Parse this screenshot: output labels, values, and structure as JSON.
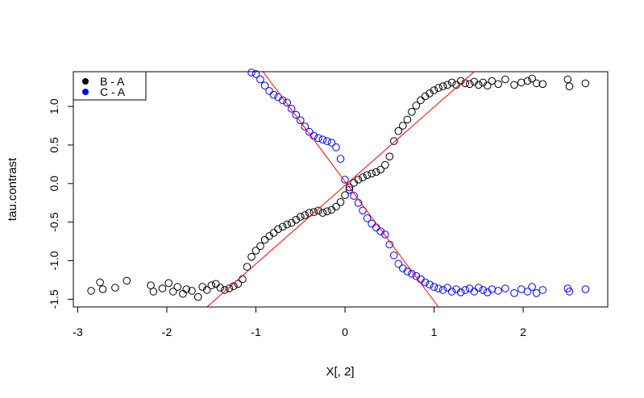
{
  "chart_data": {
    "type": "scatter",
    "title": "",
    "xlabel": "X[, 2]",
    "ylabel": "tau.contrast",
    "xlim": [
      -3.05,
      2.95
    ],
    "ylim": [
      -1.6,
      1.45
    ],
    "x_ticks": [
      "-3",
      "-2",
      "-1",
      "0",
      "1",
      "2"
    ],
    "x_tick_values": [
      -3,
      -2,
      -1,
      0,
      1,
      2
    ],
    "y_ticks": [
      "-1.5",
      "-1.0",
      "-0.5",
      "0.0",
      "0.5",
      "1.0"
    ],
    "y_tick_values": [
      -1.5,
      -1.0,
      -0.5,
      0.0,
      0.5,
      1.0
    ],
    "grid": false,
    "legend_position": "top-left",
    "series": [
      {
        "name": "B - A",
        "color": "#000000",
        "marker": "open-circle",
        "points": [
          [
            -2.85,
            -1.39
          ],
          [
            -2.75,
            -1.28
          ],
          [
            -2.72,
            -1.37
          ],
          [
            -2.58,
            -1.35
          ],
          [
            -2.45,
            -1.26
          ],
          [
            -2.18,
            -1.32
          ],
          [
            -2.15,
            -1.4
          ],
          [
            -2.05,
            -1.36
          ],
          [
            -1.98,
            -1.29
          ],
          [
            -1.93,
            -1.4
          ],
          [
            -1.88,
            -1.34
          ],
          [
            -1.82,
            -1.43
          ],
          [
            -1.78,
            -1.37
          ],
          [
            -1.72,
            -1.39
          ],
          [
            -1.65,
            -1.47
          ],
          [
            -1.6,
            -1.34
          ],
          [
            -1.55,
            -1.38
          ],
          [
            -1.5,
            -1.32
          ],
          [
            -1.45,
            -1.3
          ],
          [
            -1.4,
            -1.35
          ],
          [
            -1.35,
            -1.38
          ],
          [
            -1.3,
            -1.36
          ],
          [
            -1.25,
            -1.33
          ],
          [
            -1.2,
            -1.3
          ],
          [
            -1.15,
            -1.24
          ],
          [
            -1.1,
            -1.08
          ],
          [
            -1.05,
            -0.95
          ],
          [
            -1.0,
            -0.87
          ],
          [
            -0.95,
            -0.81
          ],
          [
            -0.9,
            -0.73
          ],
          [
            -0.85,
            -0.68
          ],
          [
            -0.8,
            -0.64
          ],
          [
            -0.75,
            -0.59
          ],
          [
            -0.7,
            -0.56
          ],
          [
            -0.65,
            -0.53
          ],
          [
            -0.6,
            -0.51
          ],
          [
            -0.55,
            -0.47
          ],
          [
            -0.5,
            -0.43
          ],
          [
            -0.45,
            -0.41
          ],
          [
            -0.4,
            -0.38
          ],
          [
            -0.35,
            -0.37
          ],
          [
            -0.3,
            -0.35
          ],
          [
            -0.25,
            -0.38
          ],
          [
            -0.2,
            -0.36
          ],
          [
            -0.15,
            -0.34
          ],
          [
            -0.1,
            -0.3
          ],
          [
            -0.05,
            -0.24
          ],
          [
            0.0,
            -0.15
          ],
          [
            0.05,
            -0.05
          ],
          [
            0.1,
            0.01
          ],
          [
            0.15,
            0.05
          ],
          [
            0.2,
            0.08
          ],
          [
            0.25,
            0.11
          ],
          [
            0.3,
            0.13
          ],
          [
            0.35,
            0.15
          ],
          [
            0.4,
            0.18
          ],
          [
            0.45,
            0.24
          ],
          [
            0.5,
            0.35
          ],
          [
            0.55,
            0.55
          ],
          [
            0.6,
            0.68
          ],
          [
            0.65,
            0.75
          ],
          [
            0.7,
            0.83
          ],
          [
            0.75,
            0.93
          ],
          [
            0.8,
            1.01
          ],
          [
            0.85,
            1.08
          ],
          [
            0.9,
            1.13
          ],
          [
            0.95,
            1.17
          ],
          [
            1.0,
            1.21
          ],
          [
            1.05,
            1.24
          ],
          [
            1.1,
            1.26
          ],
          [
            1.15,
            1.28
          ],
          [
            1.2,
            1.31
          ],
          [
            1.25,
            1.28
          ],
          [
            1.3,
            1.33
          ],
          [
            1.35,
            1.3
          ],
          [
            1.4,
            1.29
          ],
          [
            1.45,
            1.32
          ],
          [
            1.5,
            1.28
          ],
          [
            1.55,
            1.31
          ],
          [
            1.6,
            1.27
          ],
          [
            1.65,
            1.33
          ],
          [
            1.72,
            1.29
          ],
          [
            1.8,
            1.35
          ],
          [
            1.9,
            1.28
          ],
          [
            1.98,
            1.31
          ],
          [
            2.05,
            1.33
          ],
          [
            2.1,
            1.36
          ],
          [
            2.15,
            1.3
          ],
          [
            2.22,
            1.29
          ],
          [
            2.5,
            1.35
          ],
          [
            2.52,
            1.26
          ],
          [
            2.7,
            1.3
          ]
        ]
      },
      {
        "name": "C - A",
        "color": "#0000ff",
        "marker": "open-circle",
        "points": [
          [
            -1.05,
            1.44
          ],
          [
            -1.0,
            1.42
          ],
          [
            -0.95,
            1.35
          ],
          [
            -0.9,
            1.27
          ],
          [
            -0.85,
            1.2
          ],
          [
            -0.8,
            1.15
          ],
          [
            -0.75,
            1.12
          ],
          [
            -0.7,
            1.08
          ],
          [
            -0.65,
            1.05
          ],
          [
            -0.6,
            0.97
          ],
          [
            -0.55,
            0.89
          ],
          [
            -0.5,
            0.82
          ],
          [
            -0.45,
            0.74
          ],
          [
            -0.4,
            0.67
          ],
          [
            -0.35,
            0.62
          ],
          [
            -0.3,
            0.59
          ],
          [
            -0.25,
            0.57
          ],
          [
            -0.2,
            0.55
          ],
          [
            -0.15,
            0.53
          ],
          [
            -0.1,
            0.47
          ],
          [
            -0.05,
            0.32
          ],
          [
            0.0,
            0.05
          ],
          [
            0.05,
            -0.08
          ],
          [
            0.1,
            -0.16
          ],
          [
            0.15,
            -0.25
          ],
          [
            0.2,
            -0.35
          ],
          [
            0.25,
            -0.45
          ],
          [
            0.3,
            -0.52
          ],
          [
            0.35,
            -0.57
          ],
          [
            0.4,
            -0.62
          ],
          [
            0.45,
            -0.66
          ],
          [
            0.5,
            -0.79
          ],
          [
            0.55,
            -0.93
          ],
          [
            0.6,
            -1.04
          ],
          [
            0.65,
            -1.1
          ],
          [
            0.7,
            -1.14
          ],
          [
            0.75,
            -1.17
          ],
          [
            0.8,
            -1.2
          ],
          [
            0.85,
            -1.24
          ],
          [
            0.9,
            -1.28
          ],
          [
            0.95,
            -1.31
          ],
          [
            1.0,
            -1.34
          ],
          [
            1.05,
            -1.36
          ],
          [
            1.1,
            -1.38
          ],
          [
            1.15,
            -1.35
          ],
          [
            1.2,
            -1.4
          ],
          [
            1.25,
            -1.37
          ],
          [
            1.3,
            -1.41
          ],
          [
            1.35,
            -1.38
          ],
          [
            1.4,
            -1.36
          ],
          [
            1.45,
            -1.4
          ],
          [
            1.5,
            -1.35
          ],
          [
            1.55,
            -1.38
          ],
          [
            1.6,
            -1.41
          ],
          [
            1.65,
            -1.37
          ],
          [
            1.72,
            -1.39
          ],
          [
            1.8,
            -1.36
          ],
          [
            1.9,
            -1.42
          ],
          [
            1.98,
            -1.37
          ],
          [
            2.05,
            -1.4
          ],
          [
            2.1,
            -1.34
          ],
          [
            2.15,
            -1.42
          ],
          [
            2.22,
            -1.38
          ],
          [
            2.5,
            -1.36
          ],
          [
            2.52,
            -1.4
          ],
          [
            2.7,
            -1.37
          ]
        ]
      }
    ],
    "lines": [
      {
        "color": "#ff0000",
        "from": [
          -1.55,
          -1.6
        ],
        "to": [
          1.45,
          1.45
        ]
      },
      {
        "color": "#ff0000",
        "from": [
          -0.92,
          1.45
        ],
        "to": [
          1.05,
          -1.6
        ]
      }
    ]
  }
}
